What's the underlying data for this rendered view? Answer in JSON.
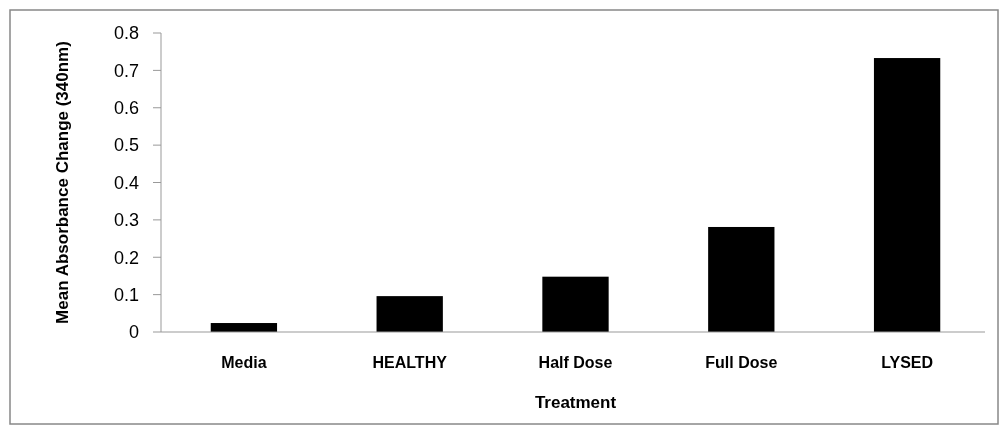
{
  "chart_data": {
    "type": "bar",
    "xlabel": "Treatment",
    "ylabel": "Mean Absorbance Change (340nm)",
    "categories": [
      "Media",
      "HEALTHY",
      "Half Dose",
      "Full Dose",
      "LYSED"
    ],
    "values": [
      0.024,
      0.096,
      0.148,
      0.281,
      0.733
    ],
    "color": "#000000",
    "ylim": [
      0,
      0.8
    ],
    "yticks": [
      {
        "value": 0,
        "label": "0"
      },
      0.1,
      0.2,
      0.3,
      0.4,
      0.5,
      0.6,
      0.7,
      0.8
    ],
    "grid": false
  }
}
